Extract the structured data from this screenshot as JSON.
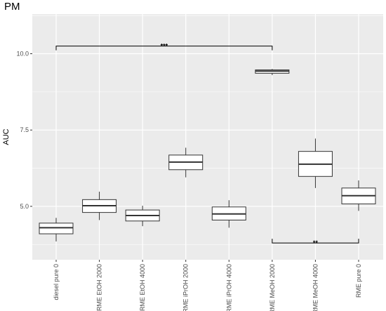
{
  "chart_data": {
    "type": "boxplot",
    "title": "PM",
    "xlabel": "",
    "ylabel": "AUC",
    "ylim": [
      3.25,
      11.3
    ],
    "yticks": [
      5.0,
      7.5,
      10.0
    ],
    "ytick_labels": [
      "5.0",
      "7.5",
      "10.0"
    ],
    "grid": true,
    "categories": [
      "diesel pure 0",
      "RME EtOH 2000",
      "RME EtOH 4000",
      "RME iPrOH 2000",
      "RME iPrOH 4000",
      "RME MeOH 2000",
      "RME MeOH 4000",
      "RME pure 0"
    ],
    "boxes": [
      {
        "whisker_low": 3.85,
        "q1": 4.1,
        "median": 4.3,
        "q3": 4.45,
        "whisker_high": 4.62
      },
      {
        "whisker_low": 4.55,
        "q1": 4.8,
        "median": 5.02,
        "q3": 5.22,
        "whisker_high": 5.48
      },
      {
        "whisker_low": 4.35,
        "q1": 4.52,
        "median": 4.7,
        "q3": 4.88,
        "whisker_high": 5.02
      },
      {
        "whisker_low": 5.95,
        "q1": 6.2,
        "median": 6.45,
        "q3": 6.68,
        "whisker_high": 6.92
      },
      {
        "whisker_low": 4.3,
        "q1": 4.55,
        "median": 4.75,
        "q3": 4.98,
        "whisker_high": 5.2
      },
      {
        "whisker_low": 9.3,
        "q1": 9.36,
        "median": 9.43,
        "q3": 9.47,
        "whisker_high": 9.5
      },
      {
        "whisker_low": 5.6,
        "q1": 5.98,
        "median": 6.38,
        "q3": 6.8,
        "whisker_high": 7.22
      },
      {
        "whisker_low": 4.85,
        "q1": 5.08,
        "median": 5.35,
        "q3": 5.6,
        "whisker_high": 5.85
      }
    ],
    "annotations": [
      {
        "from": "diesel pure 0",
        "to": "RME MeOH 2000",
        "y": 10.25,
        "direction": "down",
        "label": "***"
      },
      {
        "from": "RME MeOH 2000",
        "to": "RME pure 0",
        "y": 3.8,
        "direction": "up",
        "label": "**"
      }
    ],
    "colors": {
      "panel": "#ebebeb",
      "grid": "#ffffff",
      "box_fill": "#ffffff",
      "line": "#333333",
      "tick_text": "#4d4d4d"
    }
  }
}
